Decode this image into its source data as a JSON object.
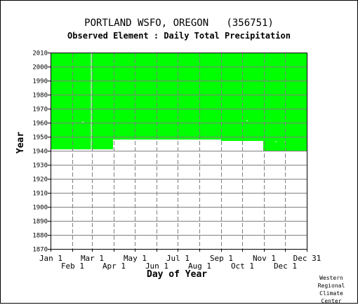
{
  "chart_data": {
    "type": "area",
    "title": "PORTLAND WSFO, OREGON   (356751)",
    "subtitle": "Observed Element : Daily Total Precipitation",
    "xlabel": "Day of Year",
    "ylabel": "Year",
    "xlim": [
      1,
      366
    ],
    "ylim": [
      1870,
      2010
    ],
    "y_ticks": [
      1870,
      1880,
      1890,
      1900,
      1910,
      1920,
      1930,
      1940,
      1950,
      1960,
      1970,
      1980,
      1990,
      2000,
      2010
    ],
    "x_ticks_upper": [
      {
        "day": 1,
        "label": "Jan 1"
      },
      {
        "day": 60,
        "label": "Mar 1"
      },
      {
        "day": 121,
        "label": "May 1"
      },
      {
        "day": 182,
        "label": "Jul 1"
      },
      {
        "day": 244,
        "label": "Sep 1"
      },
      {
        "day": 305,
        "label": "Nov 1"
      },
      {
        "day": 366,
        "label": "Dec 31"
      }
    ],
    "x_ticks_lower": [
      {
        "day": 32,
        "label": "Feb 1"
      },
      {
        "day": 91,
        "label": "Apr 1"
      },
      {
        "day": 152,
        "label": "Jun 1"
      },
      {
        "day": 213,
        "label": "Aug 1"
      },
      {
        "day": 274,
        "label": "Oct 1"
      },
      {
        "day": 335,
        "label": "Dec 1"
      }
    ],
    "grid": true,
    "fill_color": "#00ff00",
    "series": [
      {
        "segments": [
          {
            "day_start": 1,
            "day_end": 90,
            "first_year": 1941,
            "last_year": 2010
          },
          {
            "day_start": 90,
            "day_end": 244,
            "first_year": 1948,
            "last_year": 2010
          },
          {
            "day_start": 244,
            "day_end": 304,
            "first_year": 1947,
            "last_year": 2010
          },
          {
            "day_start": 304,
            "day_end": 366,
            "first_year": 1940,
            "last_year": 2010
          }
        ],
        "missing_days": [
          {
            "day": 59,
            "year_from": 1941,
            "year_to": 2010
          },
          {
            "day": 47,
            "year_from": 1960,
            "year_to": 1961
          },
          {
            "day": 281,
            "year_from": 1961,
            "year_to": 1962
          },
          {
            "day": 322,
            "year_from": 1946,
            "year_to": 1947
          },
          {
            "day": 335,
            "year_from": 1946,
            "year_to": 1947
          }
        ]
      }
    ]
  },
  "credit": "Western\nRegional\nClimate\nCenter"
}
